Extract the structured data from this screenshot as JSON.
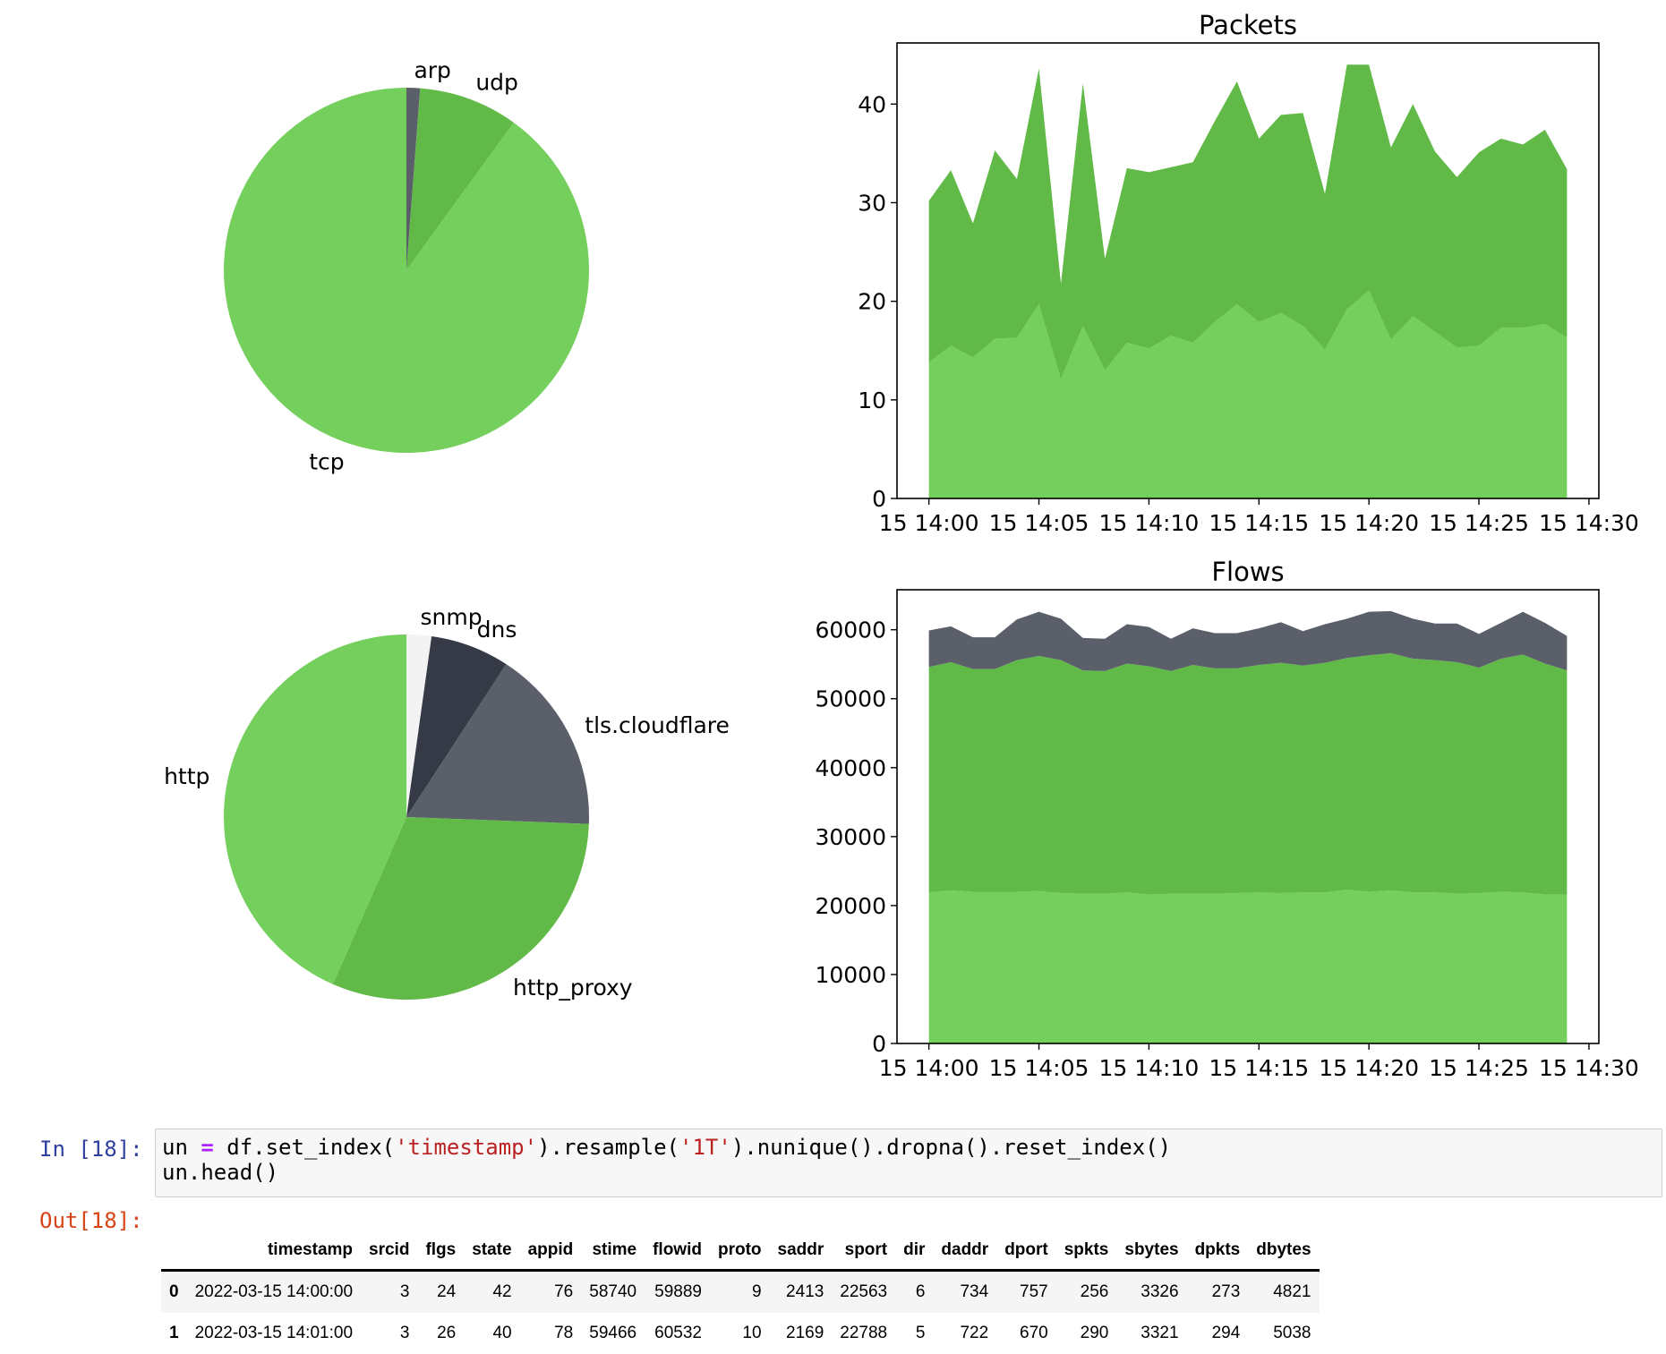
{
  "chart_data": [
    {
      "type": "pie",
      "labels": [
        "arp",
        "udp",
        "tcp"
      ],
      "values": [
        1.2,
        8.8,
        90.0
      ],
      "colors": [
        "#5a5f6a",
        "#61ba48",
        "#74cf5c"
      ],
      "startangle": 90,
      "direction": "clockwise"
    },
    {
      "type": "area",
      "stacked": true,
      "title": "Packets",
      "x": [
        "14:00",
        "14:01",
        "14:02",
        "14:03",
        "14:04",
        "14:05",
        "14:06",
        "14:07",
        "14:08",
        "14:09",
        "14:10",
        "14:11",
        "14:12",
        "14:13",
        "14:14",
        "14:15",
        "14:16",
        "14:17",
        "14:18",
        "14:19",
        "14:20",
        "14:21",
        "14:22",
        "14:23",
        "14:24",
        "14:25",
        "14:26",
        "14:27",
        "14:28",
        "14:29"
      ],
      "x_tick_labels": [
        "15 14:00",
        "15 14:05",
        "15 14:10",
        "15 14:15",
        "15 14:20",
        "15 14:25",
        "15 14:30"
      ],
      "y_tick_labels": [
        "0",
        "10",
        "20",
        "30",
        "40"
      ],
      "yticks": [
        0,
        10,
        20,
        30,
        40
      ],
      "ylim": [
        0,
        46.2
      ],
      "series": [
        {
          "color": "#74cf5c",
          "values": [
            13.8,
            15.5,
            14.3,
            16.2,
            16.3,
            19.7,
            12.1,
            17.5,
            13.0,
            15.8,
            15.2,
            16.5,
            15.8,
            17.9,
            19.7,
            17.9,
            18.8,
            17.5,
            15.1,
            19.2,
            21.1,
            16.1,
            18.5,
            16.9,
            15.3,
            15.5,
            17.3,
            17.3,
            17.7,
            16.3
          ]
        },
        {
          "color": "#61ba48",
          "values": [
            16.4,
            17.8,
            13.6,
            19.1,
            16.1,
            23.9,
            9.7,
            24.6,
            11.3,
            17.7,
            17.9,
            17.1,
            18.3,
            20.4,
            22.6,
            18.6,
            20.1,
            21.6,
            15.8,
            24.8,
            22.9,
            19.5,
            21.5,
            18.3,
            17.3,
            19.6,
            19.2,
            18.6,
            19.7,
            17.1
          ]
        }
      ]
    },
    {
      "type": "pie",
      "labels": [
        "snmp",
        "dns",
        "tls.cloudflare",
        "http_proxy",
        "http"
      ],
      "values": [
        2.2,
        7.0,
        16.4,
        31.0,
        43.4
      ],
      "colors": [
        "#f3f3f3",
        "#353a46",
        "#5a5f6a",
        "#61ba48",
        "#74cf5c"
      ],
      "startangle": 90,
      "direction": "clockwise"
    },
    {
      "type": "area",
      "stacked": true,
      "title": "Flows",
      "x": [
        "14:00",
        "14:01",
        "14:02",
        "14:03",
        "14:04",
        "14:05",
        "14:06",
        "14:07",
        "14:08",
        "14:09",
        "14:10",
        "14:11",
        "14:12",
        "14:13",
        "14:14",
        "14:15",
        "14:16",
        "14:17",
        "14:18",
        "14:19",
        "14:20",
        "14:21",
        "14:22",
        "14:23",
        "14:24",
        "14:25",
        "14:26",
        "14:27",
        "14:28",
        "14:29"
      ],
      "x_tick_labels": [
        "15 14:00",
        "15 14:05",
        "15 14:10",
        "15 14:15",
        "15 14:20",
        "15 14:25",
        "15 14:30"
      ],
      "y_tick_labels": [
        "0",
        "10000",
        "20000",
        "30000",
        "40000",
        "50000",
        "60000"
      ],
      "yticks": [
        0,
        10000,
        20000,
        30000,
        40000,
        50000,
        60000
      ],
      "ylim": [
        0,
        65800
      ],
      "series": [
        {
          "color": "#74cf5c",
          "values": [
            21900,
            22200,
            22000,
            22000,
            22000,
            22100,
            21800,
            21700,
            21700,
            21900,
            21600,
            21700,
            21700,
            21700,
            21800,
            21900,
            21800,
            21900,
            21900,
            22300,
            22000,
            22200,
            21900,
            21900,
            21700,
            21800,
            22000,
            21900,
            21600,
            21600
          ]
        },
        {
          "color": "#61ba48",
          "values": [
            32700,
            33100,
            32300,
            32300,
            33600,
            34100,
            33800,
            32400,
            32300,
            33200,
            33100,
            32300,
            33200,
            32700,
            32600,
            33000,
            33400,
            32900,
            33300,
            33600,
            34300,
            34400,
            33900,
            33700,
            33600,
            32700,
            33800,
            34500,
            33500,
            32500
          ]
        },
        {
          "color": "#5a5f6a",
          "values": [
            5300,
            5200,
            4600,
            4600,
            5900,
            6400,
            6000,
            4700,
            4700,
            5700,
            5700,
            4700,
            5300,
            5100,
            5100,
            5300,
            5900,
            5000,
            5600,
            5700,
            6300,
            6100,
            5800,
            5300,
            5600,
            4900,
            5200,
            6200,
            5900,
            5000
          ]
        }
      ]
    }
  ],
  "code_cell": {
    "in_prompt": "In [18]:",
    "out_prompt": "Out[18]:",
    "line1": {
      "a": "un ",
      "op": "=",
      "b": " df.set_index(",
      "s1": "'timestamp'",
      "c": ").resample(",
      "s2": "'1T'",
      "d": ").nunique().dropna().reset_index()"
    },
    "line2": "un.head()"
  },
  "table": {
    "columns": [
      "",
      "timestamp",
      "srcid",
      "flgs",
      "state",
      "appid",
      "stime",
      "flowid",
      "proto",
      "saddr",
      "sport",
      "dir",
      "daddr",
      "dport",
      "spkts",
      "sbytes",
      "dpkts",
      "dbytes"
    ],
    "rows": [
      [
        "0",
        "2022-03-15 14:00:00",
        "3",
        "24",
        "42",
        "76",
        "58740",
        "59889",
        "9",
        "2413",
        "22563",
        "6",
        "734",
        "757",
        "256",
        "3326",
        "273",
        "4821"
      ],
      [
        "1",
        "2022-03-15 14:01:00",
        "3",
        "26",
        "40",
        "78",
        "59466",
        "60532",
        "10",
        "2169",
        "22788",
        "5",
        "722",
        "670",
        "290",
        "3321",
        "294",
        "5038"
      ]
    ]
  }
}
